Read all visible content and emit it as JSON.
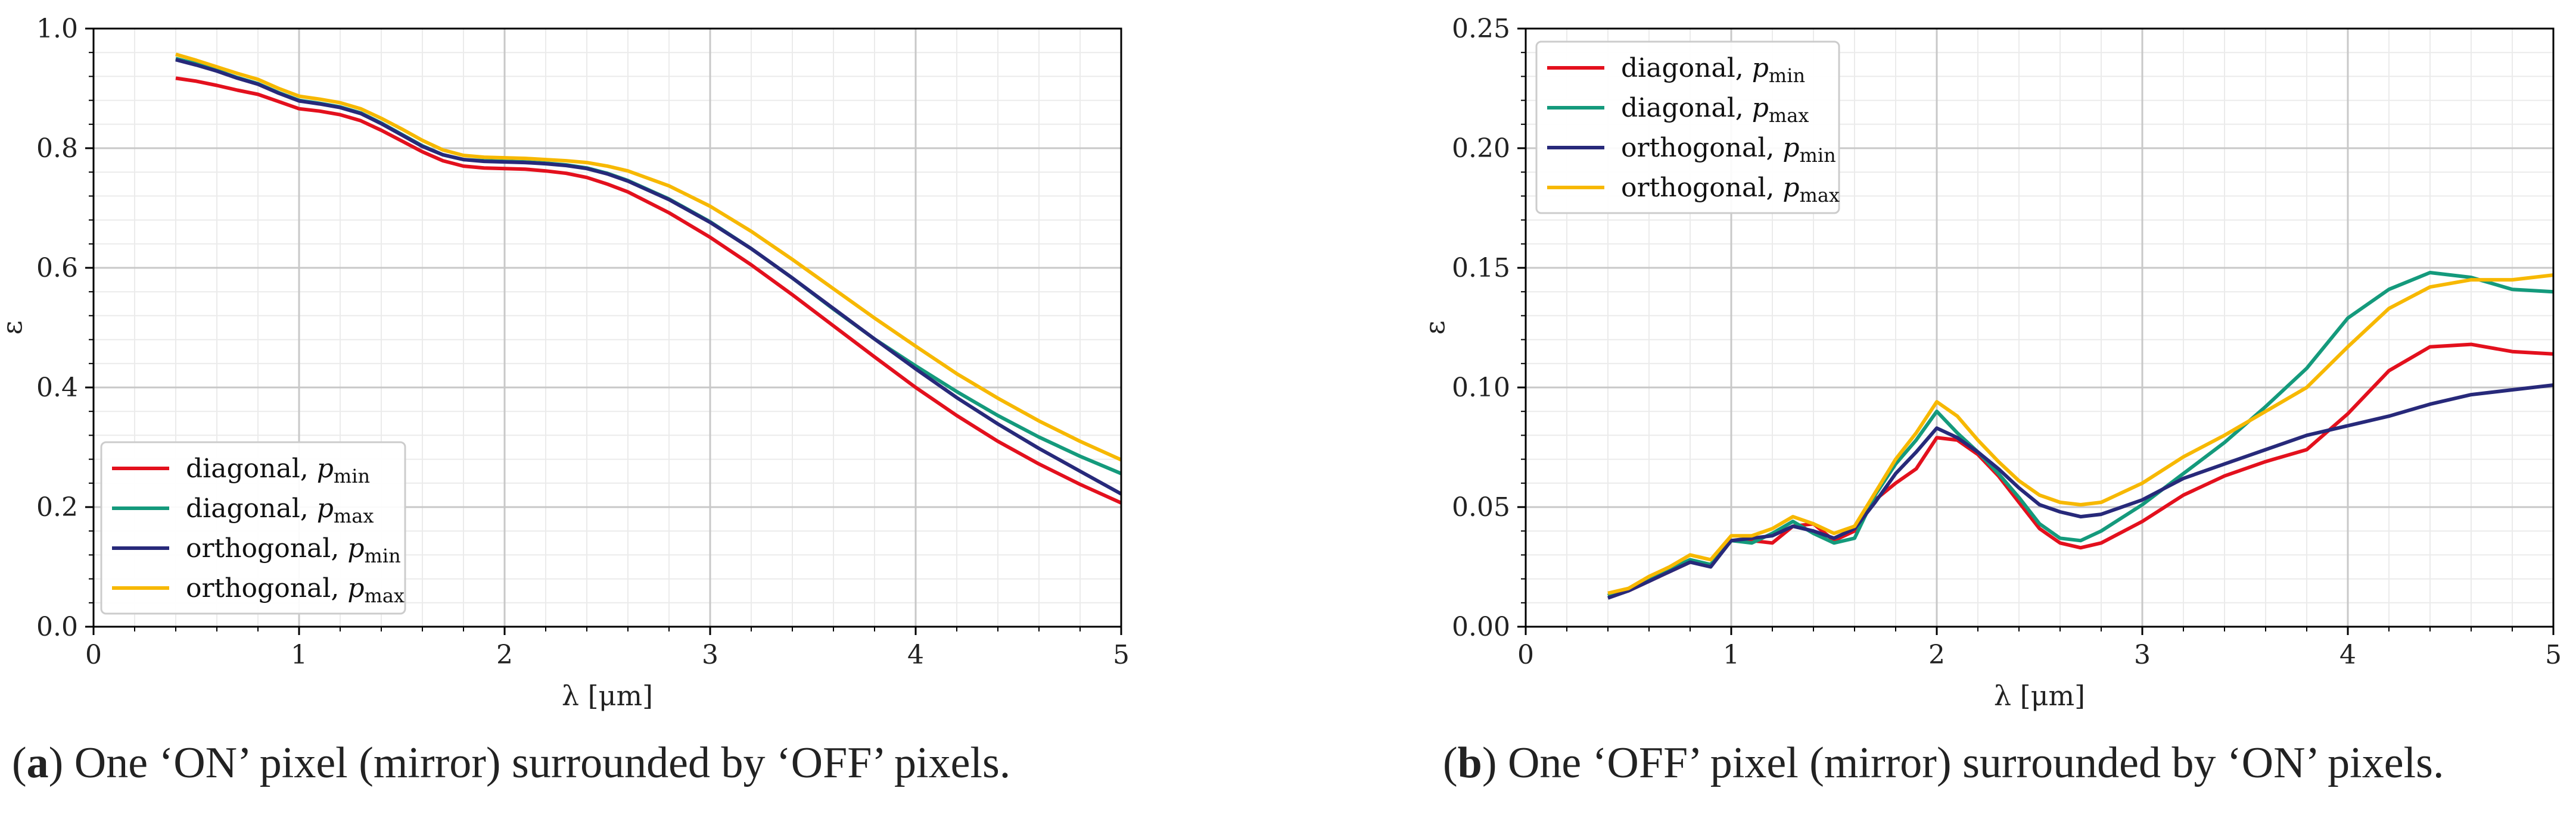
{
  "chart_data": [
    {
      "type": "line",
      "id": "a",
      "caption_letter": "a",
      "caption_text": ") One ‘ON’ pixel (mirror) surrounded by ‘OFF’ pixels.",
      "xlabel": "λ [μm]",
      "ylabel": "ε",
      "xlim": [
        0,
        5
      ],
      "ylim": [
        0,
        1.0
      ],
      "xticks": [
        0,
        1,
        2,
        3,
        4,
        5
      ],
      "xtick_labels": [
        "0",
        "1",
        "2",
        "3",
        "4",
        "5"
      ],
      "yticks": [
        0.0,
        0.2,
        0.4,
        0.6,
        0.8,
        1.0
      ],
      "ytick_labels": [
        "0.0",
        "0.2",
        "0.4",
        "0.6",
        "0.8",
        "1.0"
      ],
      "grid": true,
      "legend_position": "lower-left",
      "series": [
        {
          "name": "diagonal, ",
          "sub": "min",
          "color": "#e3101d",
          "x": [
            0.4,
            0.5,
            0.6,
            0.7,
            0.8,
            0.9,
            1.0,
            1.1,
            1.2,
            1.3,
            1.4,
            1.5,
            1.6,
            1.7,
            1.8,
            1.9,
            2.0,
            2.1,
            2.2,
            2.3,
            2.4,
            2.5,
            2.6,
            2.8,
            3.0,
            3.2,
            3.4,
            3.6,
            3.8,
            4.0,
            4.2,
            4.4,
            4.6,
            4.8,
            5.0
          ],
          "y": [
            0.917,
            0.912,
            0.905,
            0.897,
            0.89,
            0.878,
            0.866,
            0.862,
            0.856,
            0.846,
            0.83,
            0.812,
            0.794,
            0.779,
            0.77,
            0.767,
            0.766,
            0.765,
            0.762,
            0.758,
            0.751,
            0.74,
            0.727,
            0.692,
            0.651,
            0.605,
            0.555,
            0.503,
            0.451,
            0.4,
            0.353,
            0.31,
            0.272,
            0.238,
            0.207
          ]
        },
        {
          "name": "diagonal, ",
          "sub": "max",
          "color": "#149a7c",
          "x": [
            0.4,
            0.5,
            0.6,
            0.7,
            0.8,
            0.9,
            1.0,
            1.1,
            1.2,
            1.3,
            1.4,
            1.5,
            1.6,
            1.7,
            1.8,
            1.9,
            2.0,
            2.1,
            2.2,
            2.3,
            2.4,
            2.5,
            2.6,
            2.8,
            3.0,
            3.2,
            3.4,
            3.6,
            3.8,
            4.0,
            4.2,
            4.4,
            4.6,
            4.8,
            5.0
          ],
          "y": [
            0.95,
            0.941,
            0.93,
            0.918,
            0.908,
            0.893,
            0.88,
            0.875,
            0.869,
            0.859,
            0.842,
            0.823,
            0.804,
            0.789,
            0.781,
            0.779,
            0.778,
            0.777,
            0.775,
            0.772,
            0.767,
            0.758,
            0.746,
            0.715,
            0.677,
            0.632,
            0.583,
            0.531,
            0.481,
            0.436,
            0.393,
            0.353,
            0.317,
            0.285,
            0.256
          ]
        },
        {
          "name": "orthogonal, ",
          "sub": "min",
          "color": "#27297a",
          "x": [
            0.4,
            0.5,
            0.6,
            0.7,
            0.8,
            0.9,
            1.0,
            1.1,
            1.2,
            1.3,
            1.4,
            1.5,
            1.6,
            1.7,
            1.8,
            1.9,
            2.0,
            2.1,
            2.2,
            2.3,
            2.4,
            2.5,
            2.6,
            2.8,
            3.0,
            3.2,
            3.4,
            3.6,
            3.8,
            4.0,
            4.2,
            4.4,
            4.6,
            4.8,
            5.0
          ],
          "y": [
            0.948,
            0.939,
            0.929,
            0.917,
            0.907,
            0.892,
            0.879,
            0.874,
            0.868,
            0.858,
            0.841,
            0.822,
            0.803,
            0.789,
            0.781,
            0.778,
            0.777,
            0.776,
            0.774,
            0.771,
            0.766,
            0.757,
            0.745,
            0.714,
            0.676,
            0.632,
            0.583,
            0.532,
            0.481,
            0.431,
            0.383,
            0.339,
            0.298,
            0.26,
            0.222
          ]
        },
        {
          "name": "orthogonal, ",
          "sub": "max",
          "color": "#f7b800",
          "x": [
            0.4,
            0.5,
            0.6,
            0.7,
            0.8,
            0.9,
            1.0,
            1.1,
            1.2,
            1.3,
            1.4,
            1.5,
            1.6,
            1.7,
            1.8,
            1.9,
            2.0,
            2.1,
            2.2,
            2.3,
            2.4,
            2.5,
            2.6,
            2.8,
            3.0,
            3.2,
            3.4,
            3.6,
            3.8,
            4.0,
            4.2,
            4.4,
            4.6,
            4.8,
            5.0
          ],
          "y": [
            0.957,
            0.947,
            0.936,
            0.925,
            0.915,
            0.9,
            0.887,
            0.882,
            0.876,
            0.866,
            0.85,
            0.832,
            0.813,
            0.797,
            0.788,
            0.785,
            0.784,
            0.783,
            0.781,
            0.779,
            0.776,
            0.77,
            0.762,
            0.737,
            0.703,
            0.661,
            0.614,
            0.565,
            0.516,
            0.469,
            0.423,
            0.382,
            0.344,
            0.31,
            0.279
          ]
        }
      ]
    },
    {
      "type": "line",
      "id": "b",
      "caption_letter": "b",
      "caption_text": ") One ‘OFF’ pixel (mirror) surrounded by ‘ON’ pixels.",
      "xlabel": "λ [μm]",
      "ylabel": "ε",
      "xlim": [
        0,
        5
      ],
      "ylim": [
        0,
        0.25
      ],
      "xticks": [
        0,
        1,
        2,
        3,
        4,
        5
      ],
      "xtick_labels": [
        "0",
        "1",
        "2",
        "3",
        "4",
        "5"
      ],
      "yticks": [
        0.0,
        0.05,
        0.1,
        0.15,
        0.2,
        0.25
      ],
      "ytick_labels": [
        "0.00",
        "0.05",
        "0.10",
        "0.15",
        "0.20",
        "0.25"
      ],
      "grid": true,
      "legend_position": "upper-left",
      "series": [
        {
          "name": "diagonal, ",
          "sub": "min",
          "color": "#e3101d",
          "x": [
            0.4,
            0.5,
            0.6,
            0.7,
            0.8,
            0.9,
            1.0,
            1.1,
            1.2,
            1.3,
            1.4,
            1.5,
            1.6,
            1.7,
            1.8,
            1.9,
            2.0,
            2.1,
            2.2,
            2.3,
            2.4,
            2.5,
            2.6,
            2.7,
            2.8,
            3.0,
            3.2,
            3.4,
            3.6,
            3.8,
            4.0,
            4.2,
            4.4,
            4.6,
            4.8,
            5.0
          ],
          "y": [
            0.013,
            0.015,
            0.019,
            0.023,
            0.027,
            0.026,
            0.036,
            0.036,
            0.035,
            0.042,
            0.043,
            0.036,
            0.04,
            0.053,
            0.06,
            0.066,
            0.079,
            0.078,
            0.072,
            0.063,
            0.052,
            0.041,
            0.035,
            0.033,
            0.035,
            0.044,
            0.055,
            0.063,
            0.069,
            0.074,
            0.089,
            0.107,
            0.117,
            0.118,
            0.115,
            0.114
          ]
        },
        {
          "name": "diagonal, ",
          "sub": "max",
          "color": "#149a7c",
          "x": [
            0.4,
            0.5,
            0.6,
            0.7,
            0.8,
            0.9,
            1.0,
            1.1,
            1.2,
            1.3,
            1.4,
            1.5,
            1.6,
            1.7,
            1.8,
            1.9,
            2.0,
            2.1,
            2.2,
            2.3,
            2.4,
            2.5,
            2.6,
            2.7,
            2.8,
            3.0,
            3.2,
            3.4,
            3.6,
            3.8,
            4.0,
            4.2,
            4.4,
            4.6,
            4.8,
            5.0
          ],
          "y": [
            0.013,
            0.016,
            0.02,
            0.024,
            0.028,
            0.026,
            0.036,
            0.035,
            0.039,
            0.044,
            0.039,
            0.035,
            0.037,
            0.055,
            0.068,
            0.078,
            0.09,
            0.081,
            0.073,
            0.064,
            0.054,
            0.043,
            0.037,
            0.036,
            0.04,
            0.051,
            0.064,
            0.077,
            0.092,
            0.108,
            0.129,
            0.141,
            0.148,
            0.146,
            0.141,
            0.14
          ]
        },
        {
          "name": "orthogonal, ",
          "sub": "min",
          "color": "#27297a",
          "x": [
            0.4,
            0.5,
            0.6,
            0.7,
            0.8,
            0.9,
            1.0,
            1.1,
            1.2,
            1.3,
            1.4,
            1.5,
            1.6,
            1.7,
            1.8,
            1.9,
            2.0,
            2.1,
            2.2,
            2.3,
            2.4,
            2.5,
            2.6,
            2.7,
            2.8,
            3.0,
            3.2,
            3.4,
            3.6,
            3.8,
            4.0,
            4.2,
            4.4,
            4.6,
            4.8,
            5.0
          ],
          "y": [
            0.012,
            0.015,
            0.019,
            0.023,
            0.027,
            0.025,
            0.036,
            0.037,
            0.038,
            0.042,
            0.04,
            0.037,
            0.041,
            0.052,
            0.064,
            0.073,
            0.083,
            0.079,
            0.073,
            0.066,
            0.058,
            0.051,
            0.048,
            0.046,
            0.047,
            0.053,
            0.062,
            0.068,
            0.074,
            0.08,
            0.084,
            0.088,
            0.093,
            0.097,
            0.099,
            0.101
          ]
        },
        {
          "name": "orthogonal, ",
          "sub": "max",
          "color": "#f7b800",
          "x": [
            0.4,
            0.5,
            0.6,
            0.7,
            0.8,
            0.9,
            1.0,
            1.1,
            1.2,
            1.3,
            1.4,
            1.5,
            1.6,
            1.7,
            1.8,
            1.9,
            2.0,
            2.1,
            2.2,
            2.3,
            2.4,
            2.5,
            2.6,
            2.7,
            2.8,
            3.0,
            3.2,
            3.4,
            3.6,
            3.8,
            4.0,
            4.2,
            4.4,
            4.6,
            4.8,
            5.0
          ],
          "y": [
            0.014,
            0.016,
            0.021,
            0.025,
            0.03,
            0.028,
            0.038,
            0.038,
            0.041,
            0.046,
            0.043,
            0.039,
            0.042,
            0.056,
            0.07,
            0.081,
            0.094,
            0.088,
            0.078,
            0.069,
            0.061,
            0.055,
            0.052,
            0.051,
            0.052,
            0.06,
            0.071,
            0.08,
            0.09,
            0.1,
            0.117,
            0.133,
            0.142,
            0.145,
            0.145,
            0.147
          ]
        }
      ]
    }
  ]
}
